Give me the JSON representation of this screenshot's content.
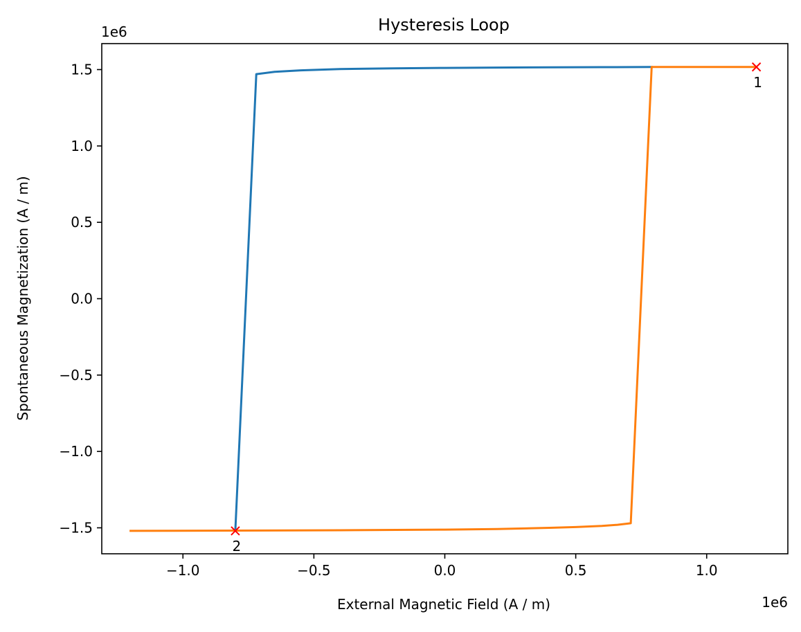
{
  "chart_data": {
    "type": "line",
    "title": "Hysteresis Loop",
    "xlabel": "External Magnetic Field (A / m)",
    "ylabel": "Spontaneous Magnetization (A / m)",
    "x_offset_label": "1e6",
    "y_offset_label": "1e6",
    "xlim": [
      -1.31,
      1.31
    ],
    "ylim": [
      -1.67,
      1.67
    ],
    "xticks": [
      -1.0,
      -0.5,
      0.0,
      0.5,
      1.0
    ],
    "xtick_labels": [
      "−1.0",
      "−0.5",
      "0.0",
      "0.5",
      "1.0"
    ],
    "yticks": [
      -1.5,
      -1.0,
      -0.5,
      0.0,
      0.5,
      1.0,
      1.5
    ],
    "ytick_labels": [
      "−1.5",
      "−1.0",
      "−0.5",
      "0.0",
      "0.5",
      "1.0",
      "1.5"
    ],
    "grid": false,
    "series": [
      {
        "color": "#1f77b4",
        "x": [
          -0.8,
          -0.72,
          -0.65,
          -0.55,
          -0.4,
          -0.2,
          0.0,
          0.2,
          0.4,
          0.6,
          0.79
        ],
        "y": [
          -1.52,
          1.47,
          1.485,
          1.495,
          1.503,
          1.508,
          1.511,
          1.513,
          1.515,
          1.516,
          1.517
        ]
      },
      {
        "color": "#ff7f0e",
        "x": [
          -1.2,
          -0.8,
          -0.4,
          0.0,
          0.2,
          0.4,
          0.5,
          0.6,
          0.66,
          0.71,
          0.79,
          1.0,
          1.19
        ],
        "y": [
          -1.52,
          -1.518,
          -1.516,
          -1.512,
          -1.508,
          -1.5,
          -1.495,
          -1.488,
          -1.48,
          -1.47,
          1.517,
          1.517,
          1.517
        ]
      }
    ],
    "markers": [
      {
        "label": "1",
        "x": 1.19,
        "y": 1.517,
        "color": "#ff0000"
      },
      {
        "label": "2",
        "x": -0.8,
        "y": -1.52,
        "color": "#ff0000"
      }
    ]
  }
}
